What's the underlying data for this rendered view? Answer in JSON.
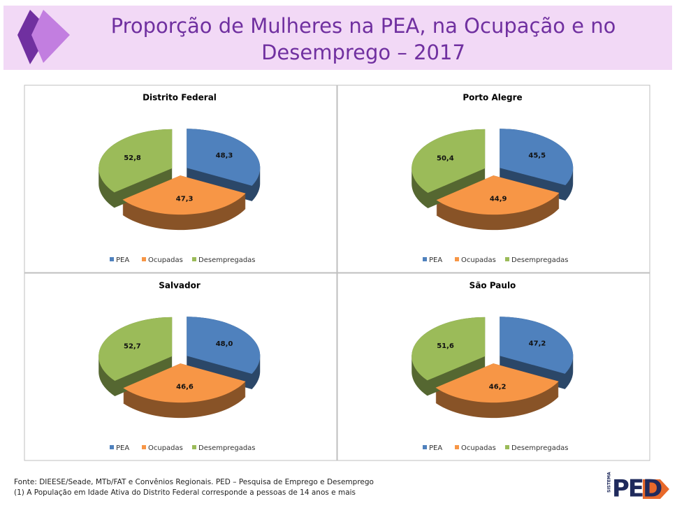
{
  "header": {
    "title": "Proporção de Mulheres na PEA, na Ocupação e no Desemprego – 2017"
  },
  "chart_data": [
    {
      "type": "pie",
      "title": "Distrito Federal",
      "categories": [
        "PEA",
        "Ocupadas",
        "Desempregadas"
      ],
      "values": [
        48.3,
        47.3,
        52.8
      ],
      "value_labels": [
        "48,3",
        "47,3",
        "52,8"
      ],
      "colors": [
        "#4f81bd",
        "#f79646",
        "#9bbb59"
      ]
    },
    {
      "type": "pie",
      "title": "Porto Alegre",
      "categories": [
        "PEA",
        "Ocupadas",
        "Desempregadas"
      ],
      "values": [
        45.5,
        44.9,
        50.4
      ],
      "value_labels": [
        "45,5",
        "44,9",
        "50,4"
      ],
      "colors": [
        "#4f81bd",
        "#f79646",
        "#9bbb59"
      ]
    },
    {
      "type": "pie",
      "title": "Salvador",
      "categories": [
        "PEA",
        "Ocupadas",
        "Desempregadas"
      ],
      "values": [
        48.0,
        46.6,
        52.7
      ],
      "value_labels": [
        "48,0",
        "46,6",
        "52,7"
      ],
      "colors": [
        "#4f81bd",
        "#f79646",
        "#9bbb59"
      ]
    },
    {
      "type": "pie",
      "title": "São Paulo",
      "categories": [
        "PEA",
        "Ocupadas",
        "Desempregadas"
      ],
      "values": [
        47.2,
        46.2,
        51.6
      ],
      "value_labels": [
        "47,2",
        "46,2",
        "51,6"
      ],
      "colors": [
        "#4f81bd",
        "#f79646",
        "#9bbb59"
      ]
    }
  ],
  "footer": {
    "source": "Fonte: DIEESE/Seade, MTb/FAT e Convênios Regionais. PED – Pesquisa de Emprego e Desemprego",
    "note": "(1) A População em Idade Ativa do Distrito Federal corresponde a pessoas de 14 anos e mais"
  },
  "logo": {
    "text": "PED",
    "label": "SISTEMA"
  }
}
